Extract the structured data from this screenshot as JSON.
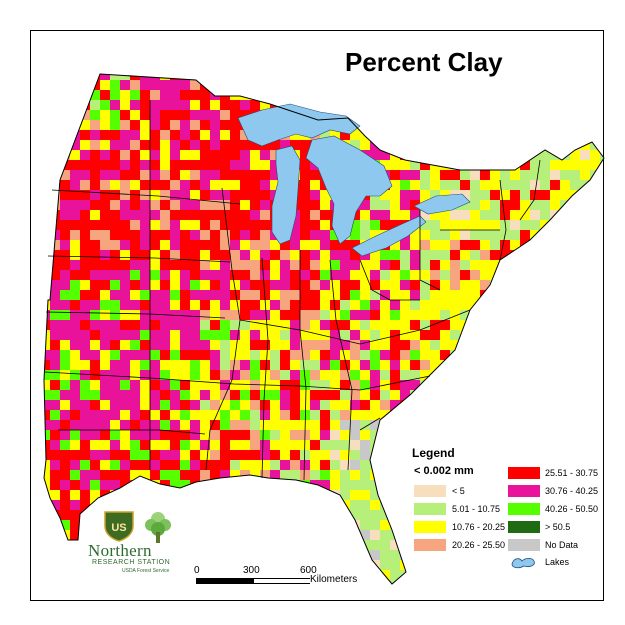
{
  "map": {
    "title": "Percent Clay",
    "region": "Eastern United States",
    "lake_color": "#8ec8ef",
    "border_color": "#000000",
    "legend": {
      "title": "Legend",
      "unit": "< 0.002 mm",
      "classes": [
        {
          "label": "< 5",
          "color": "#f7dfbd"
        },
        {
          "label": "5.01 - 10.75",
          "color": "#b6f07a"
        },
        {
          "label": "10.76 - 20.25",
          "color": "#ffff00"
        },
        {
          "label": "20.26 - 25.50",
          "color": "#f6a57f"
        },
        {
          "label": "25.51 - 30.75",
          "color": "#ff0000"
        },
        {
          "label": "30.76 - 40.25",
          "color": "#e8139a"
        },
        {
          "label": "40.26 - 50.50",
          "color": "#55ff00"
        },
        {
          "label": "> 50.5",
          "color": "#1e6b14"
        },
        {
          "label": "No Data",
          "color": "#c8c8c8"
        },
        {
          "label": "Lakes",
          "color": "#8ec8ef",
          "icon": "lake-icon"
        }
      ]
    },
    "scale_bar": {
      "ticks": [
        "0",
        "300",
        "600"
      ],
      "units": "Kilometers"
    },
    "logo": {
      "name": "Northern",
      "subtitle": "RESEARCH STATION",
      "agency": "USDA Forest Service",
      "shield_text": "US",
      "icons": [
        "forest-service-shield-icon",
        "tree-icon"
      ]
    }
  }
}
